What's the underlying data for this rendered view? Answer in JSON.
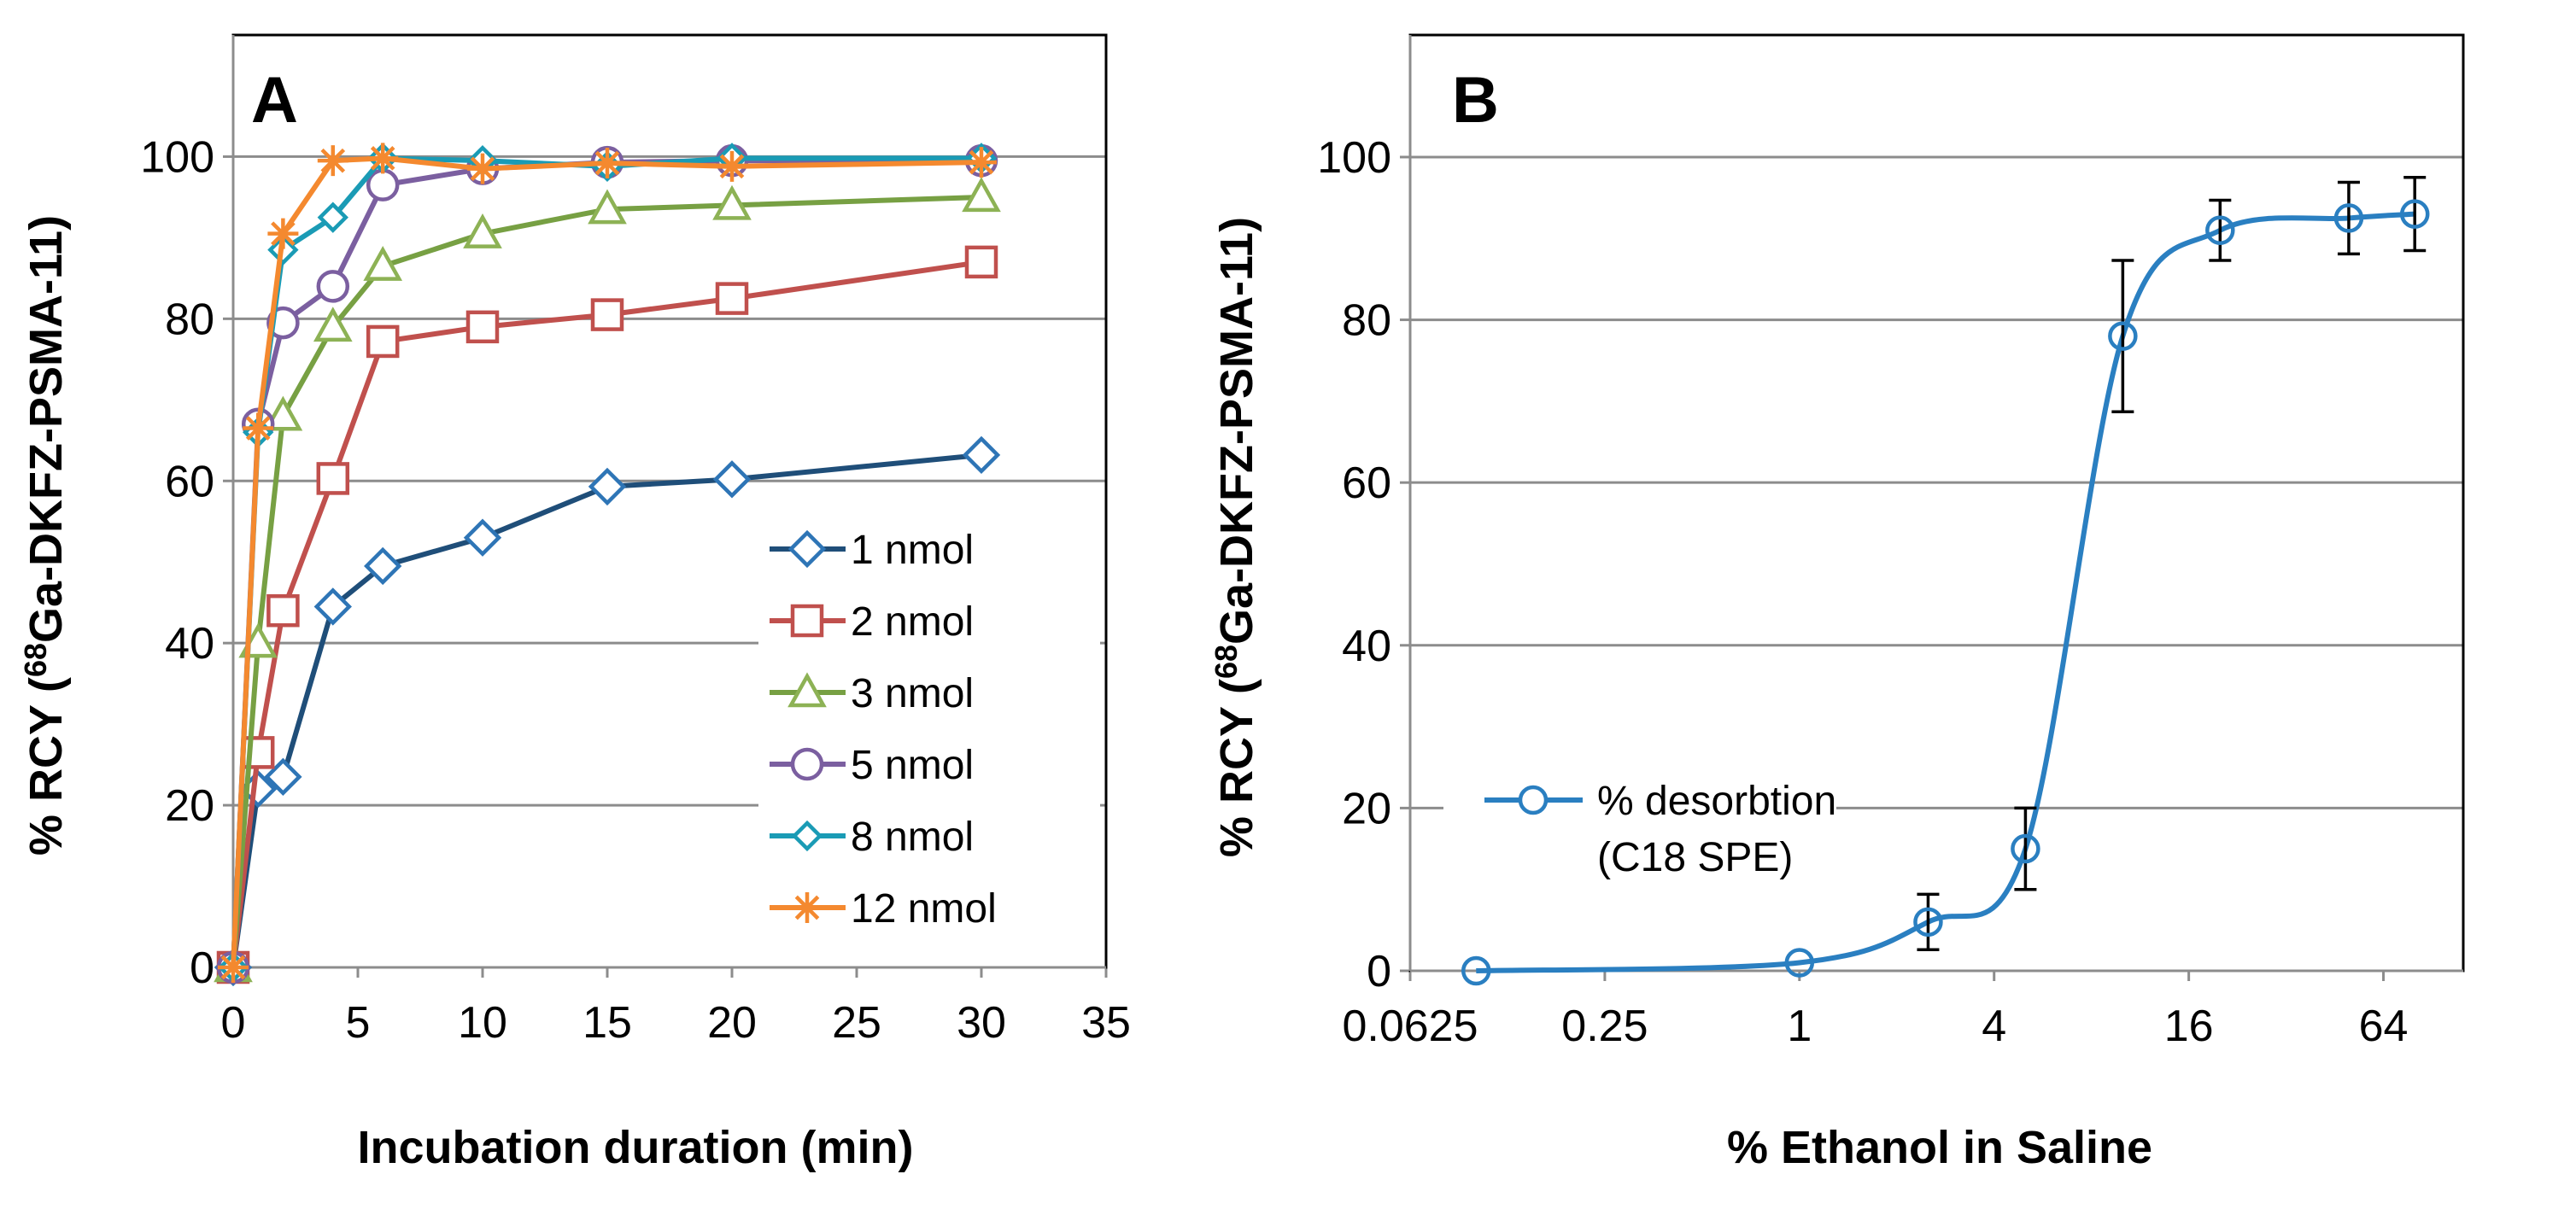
{
  "chart_data": [
    {
      "type": "line",
      "panel_label": "A",
      "xlabel": "Incubation duration (min)",
      "ylabel_prefix": "% RCY (",
      "ylabel_sup": "68",
      "ylabel_suffix": "Ga-DKFZ-PSMA-11)",
      "xlim": [
        0,
        35
      ],
      "ylim": [
        0,
        115
      ],
      "xticks": [
        0,
        5,
        10,
        15,
        20,
        25,
        30,
        35
      ],
      "yticks": [
        0,
        20,
        40,
        60,
        80,
        100
      ],
      "grid": true,
      "legend_position": "bottom-right",
      "x": [
        0,
        1,
        2,
        4,
        6,
        10,
        15,
        20,
        30
      ],
      "series": [
        {
          "name": "1 nmol",
          "color": "#1f4e79",
          "marker_color": "#2e75b6",
          "marker": "diamond",
          "values": [
            0,
            22,
            23.5,
            44.5,
            49.5,
            53,
            59.3,
            60.2,
            63.2
          ]
        },
        {
          "name": "2 nmol",
          "color": "#c0504d",
          "marker_color": "#c0504d",
          "marker": "square",
          "values": [
            0,
            26.5,
            44,
            60.3,
            77.2,
            79,
            80.5,
            82.5,
            87
          ]
        },
        {
          "name": "3 nmol",
          "color": "#77a043",
          "marker_color": "#8db255",
          "marker": "triangle",
          "values": [
            0,
            40,
            68,
            79,
            86.5,
            90.5,
            93.5,
            94,
            95
          ]
        },
        {
          "name": "5 nmol",
          "color": "#7b5fa0",
          "marker_color": "#7b5fa0",
          "marker": "circle",
          "values": [
            0,
            67,
            79.5,
            84,
            96.5,
            98.5,
            99.3,
            99.5,
            99.5
          ]
        },
        {
          "name": "8 nmol",
          "color": "#1a9bb5",
          "marker_color": "#1a9bb5",
          "marker": "diamond-small",
          "values": [
            0,
            66,
            88.5,
            92.5,
            99.8,
            99.5,
            98.8,
            99.8,
            99.8
          ]
        },
        {
          "name": "12 nmol",
          "color": "#f4892f",
          "marker_color": "#f4892f",
          "marker": "star",
          "values": [
            0,
            66.5,
            90.5,
            99.5,
            99.8,
            98.5,
            99.2,
            98.8,
            99.3
          ]
        }
      ]
    },
    {
      "type": "line",
      "panel_label": "B",
      "xlabel": "% Ethanol in Saline",
      "ylabel_prefix": "% RCY (",
      "ylabel_sup": "68",
      "ylabel_suffix": "Ga-DKFZ-PSMA-11)",
      "xscale": "log2",
      "xlim": [
        0.0625,
        113
      ],
      "ylim": [
        0,
        115
      ],
      "xticks": [
        0.0625,
        0.25,
        1,
        4,
        16,
        64
      ],
      "xtick_labels": [
        "0.0625",
        "0.25",
        "1",
        "4",
        "16",
        "64"
      ],
      "yticks": [
        0,
        20,
        40,
        60,
        80,
        100
      ],
      "grid": true,
      "legend_position": "center-left",
      "series": [
        {
          "name": "% desorbtion",
          "name_line2": "(C18 SPE)",
          "color": "#2a7fc1",
          "x": [
            0.1,
            1,
            2.5,
            5,
            10,
            20,
            50,
            80
          ],
          "values": [
            0,
            1,
            6,
            15,
            78,
            91,
            92.5,
            93
          ],
          "errors": [
            0,
            0.5,
            3.4,
            5,
            9.3,
            3.7,
            4.4,
            4.5
          ]
        }
      ]
    }
  ]
}
